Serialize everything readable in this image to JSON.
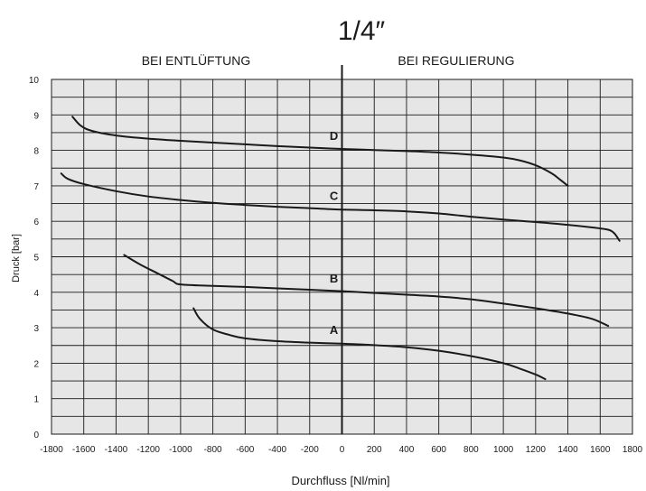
{
  "chart_data": {
    "type": "line",
    "title": "1/4″",
    "region_labels": {
      "left": "BEI ENTLÜFTUNG",
      "right": "BEI REGULIERUNG"
    },
    "xlabel": "Durchfluss [Nl/min]",
    "ylabel": "Druck [bar]",
    "xlim": [
      -1800,
      1800
    ],
    "ylim": [
      0,
      10
    ],
    "x_ticks": [
      -1800,
      -1600,
      -1400,
      -1200,
      -1000,
      -800,
      -600,
      -400,
      -200,
      0,
      200,
      400,
      600,
      800,
      1000,
      1200,
      1400,
      1600,
      1800
    ],
    "y_ticks": [
      0,
      1,
      2,
      3,
      4,
      5,
      6,
      7,
      8,
      9,
      10
    ],
    "grid": true,
    "background": "#e6e6e6",
    "line_color": "#1a1a1a",
    "series": [
      {
        "name": "D",
        "label_at": [
          -50,
          8.3
        ],
        "x": [
          -1670,
          -1620,
          -1550,
          -1400,
          -1200,
          -1000,
          -800,
          -600,
          -400,
          -200,
          0,
          200,
          400,
          600,
          800,
          1000,
          1100,
          1200,
          1300,
          1350,
          1400
        ],
        "y": [
          8.95,
          8.7,
          8.55,
          8.42,
          8.33,
          8.27,
          8.22,
          8.17,
          8.12,
          8.08,
          8.04,
          8.01,
          7.98,
          7.94,
          7.88,
          7.8,
          7.72,
          7.58,
          7.35,
          7.18,
          7.0
        ]
      },
      {
        "name": "C",
        "label_at": [
          -50,
          6.6
        ],
        "x": [
          -1740,
          -1700,
          -1600,
          -1400,
          -1200,
          -1000,
          -800,
          -600,
          -400,
          -200,
          0,
          200,
          400,
          600,
          800,
          1000,
          1200,
          1400,
          1600,
          1660,
          1690,
          1720
        ],
        "y": [
          7.35,
          7.2,
          7.05,
          6.85,
          6.7,
          6.6,
          6.52,
          6.46,
          6.41,
          6.37,
          6.33,
          6.31,
          6.28,
          6.22,
          6.13,
          6.05,
          5.98,
          5.9,
          5.8,
          5.75,
          5.65,
          5.45
        ]
      },
      {
        "name": "B",
        "label_at": [
          -50,
          4.28
        ],
        "x": [
          -1350,
          -1250,
          -1150,
          -1050,
          -1000,
          -800,
          -600,
          -400,
          -200,
          0,
          200,
          400,
          600,
          800,
          1000,
          1200,
          1400,
          1550,
          1650
        ],
        "y": [
          5.05,
          4.78,
          4.55,
          4.32,
          4.22,
          4.18,
          4.15,
          4.11,
          4.07,
          4.03,
          3.98,
          3.93,
          3.88,
          3.8,
          3.68,
          3.55,
          3.4,
          3.25,
          3.05
        ]
      },
      {
        "name": "A",
        "label_at": [
          -50,
          2.82
        ],
        "x": [
          -920,
          -880,
          -800,
          -700,
          -600,
          -400,
          -200,
          0,
          200,
          400,
          600,
          800,
          1000,
          1100,
          1200,
          1260
        ],
        "y": [
          3.55,
          3.25,
          2.95,
          2.8,
          2.7,
          2.62,
          2.58,
          2.55,
          2.51,
          2.45,
          2.35,
          2.2,
          2.0,
          1.85,
          1.68,
          1.55
        ]
      }
    ]
  }
}
